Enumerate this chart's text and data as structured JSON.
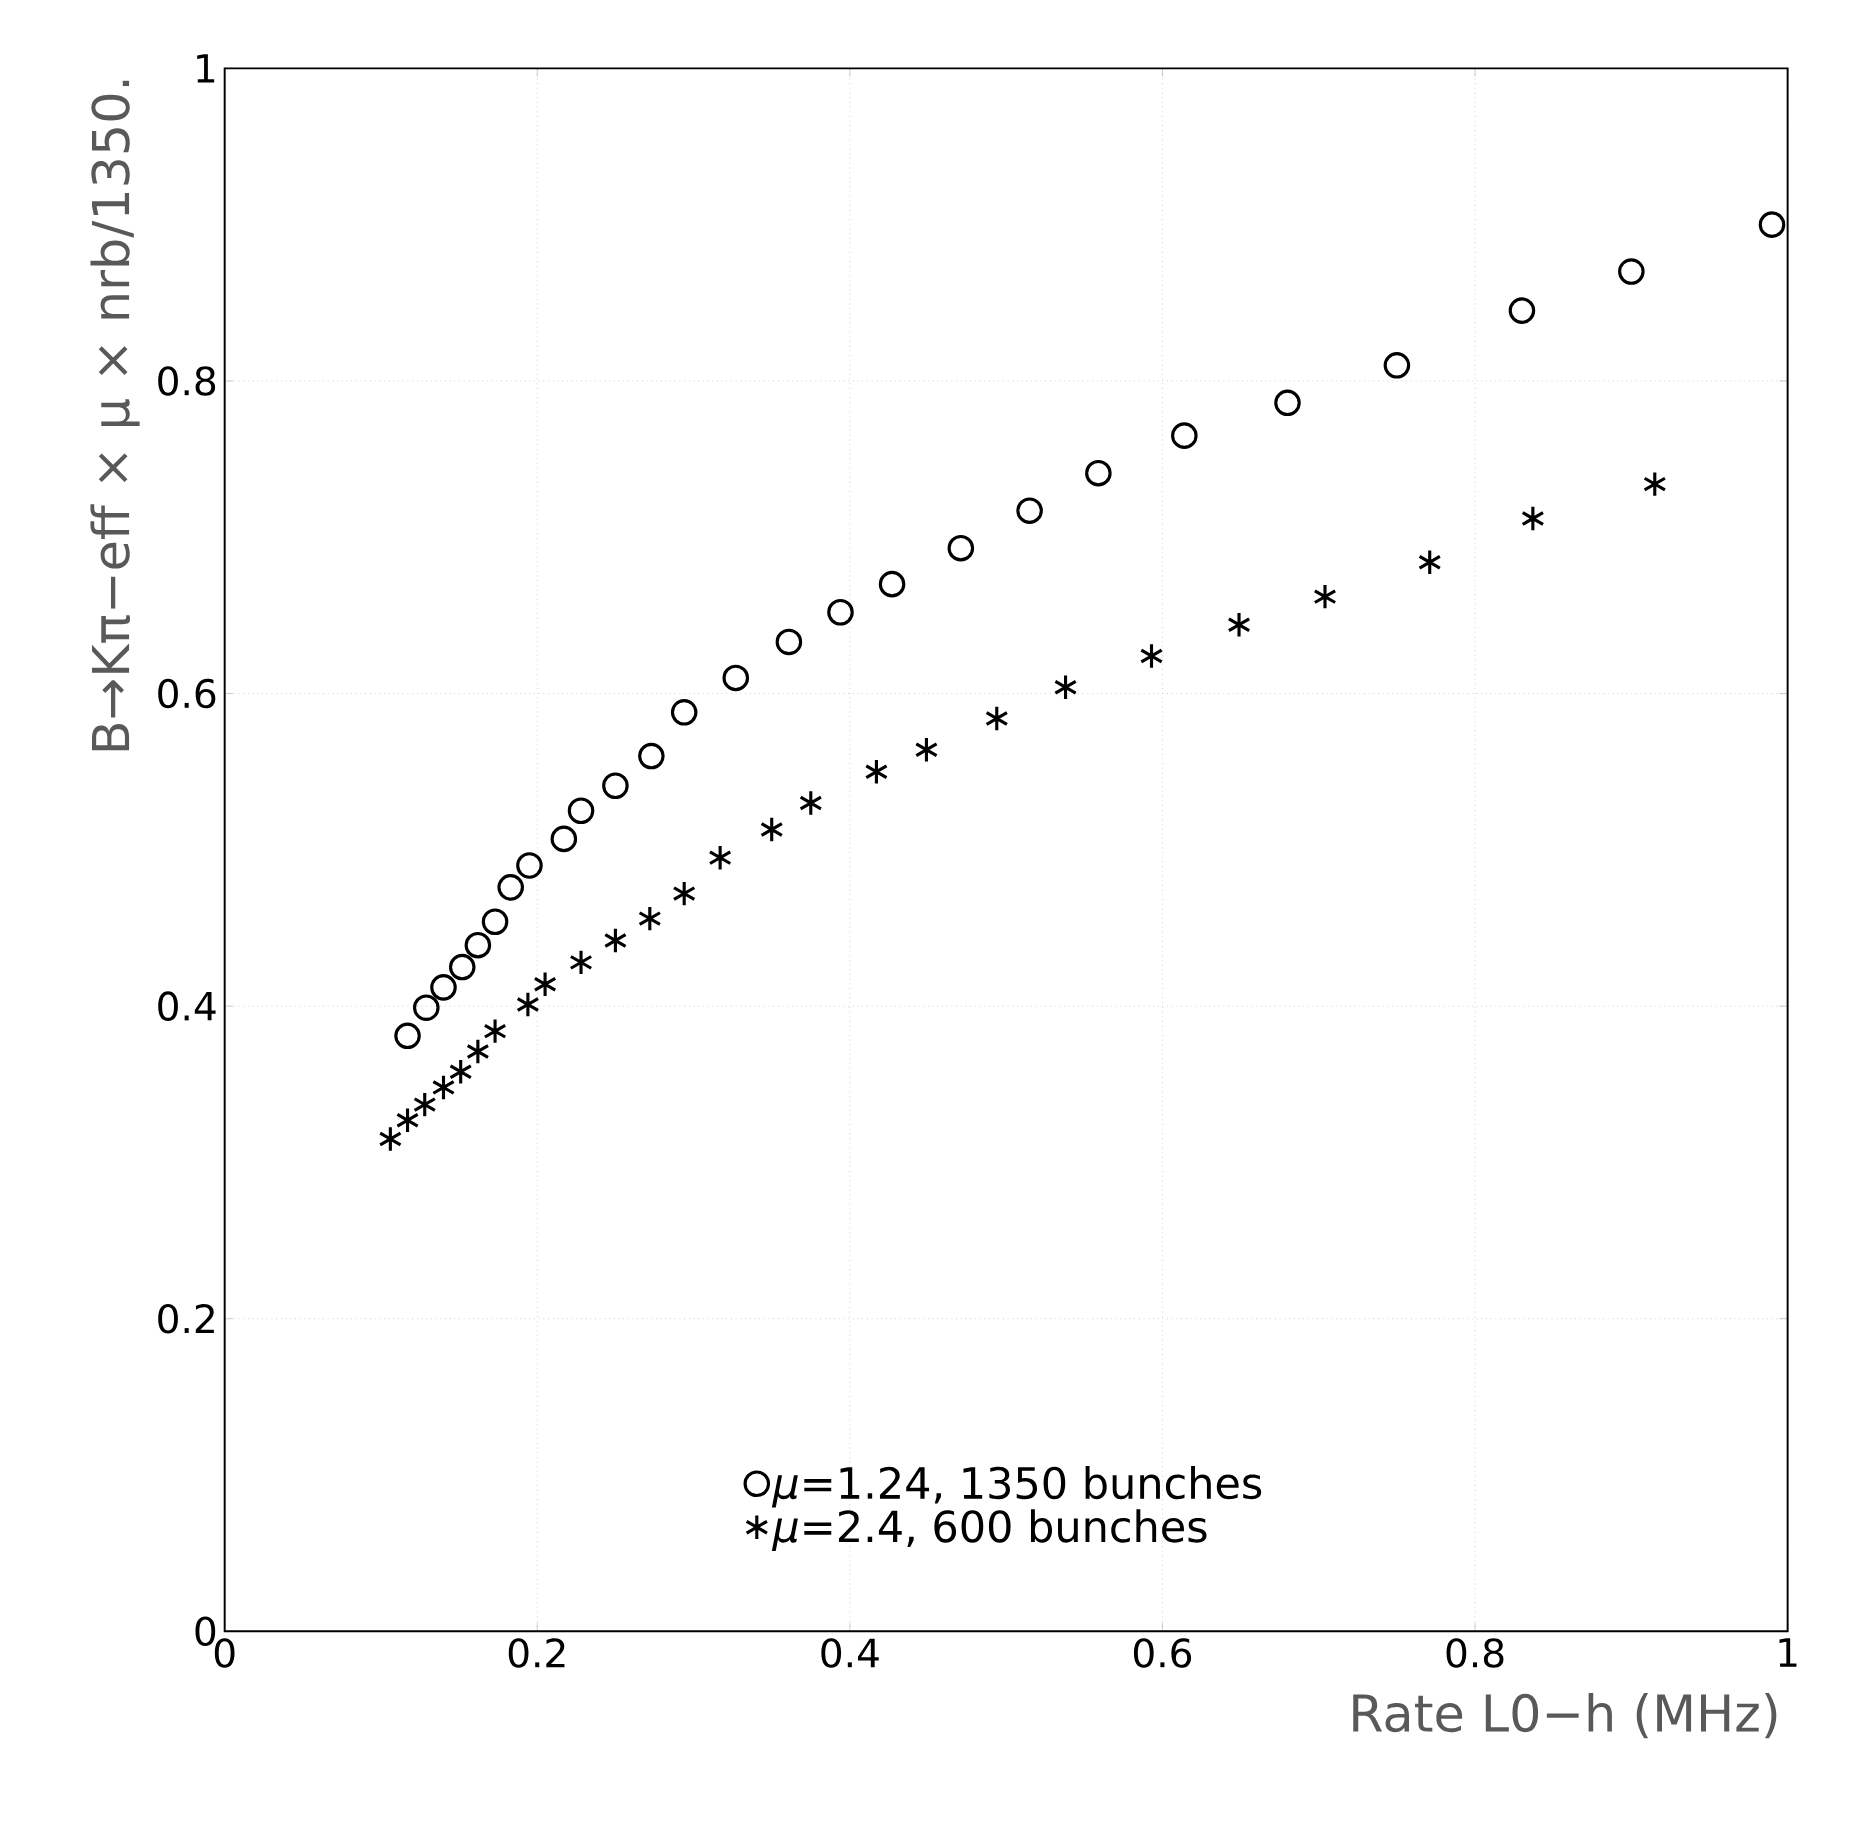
{
  "chart_data": {
    "type": "scatter",
    "xlabel": "Rate L0−h (MHz)",
    "ylabel": "B→Kπ−eff × μ × nrb/1350.",
    "xlim": [
      0,
      1
    ],
    "ylim": [
      0,
      1
    ],
    "xticks": [
      0,
      0.2,
      0.4,
      0.6,
      0.8,
      1
    ],
    "yticks": [
      0,
      0.2,
      0.4,
      0.6,
      0.8,
      1
    ],
    "grid": true,
    "legend": "bottom",
    "series": [
      {
        "name": "*μ*=1.24, 1350 bunches",
        "color": "#000000",
        "marker": "circle",
        "x": [
          0.117,
          0.129,
          0.14,
          0.152,
          0.162,
          0.173,
          0.183,
          0.195,
          0.217,
          0.228,
          0.25,
          0.273,
          0.294,
          0.327,
          0.361,
          0.394,
          0.427,
          0.471,
          0.515,
          0.559,
          0.614,
          0.68,
          0.75,
          0.83,
          0.9,
          0.99
        ],
        "values": [
          0.381,
          0.399,
          0.412,
          0.425,
          0.439,
          0.454,
          0.476,
          0.49,
          0.507,
          0.525,
          0.541,
          0.56,
          0.588,
          0.61,
          0.633,
          0.652,
          0.67,
          0.693,
          0.717,
          0.741,
          0.765,
          0.786,
          0.81,
          0.845,
          0.87,
          0.9
        ]
      },
      {
        "name": "*μ*=2.4, 600 bunches",
        "color": "#000000",
        "marker": "cross",
        "x": [
          0.106,
          0.117,
          0.128,
          0.14,
          0.151,
          0.162,
          0.173,
          0.194,
          0.205,
          0.228,
          0.25,
          0.272,
          0.294,
          0.317,
          0.35,
          0.375,
          0.417,
          0.449,
          0.494,
          0.538,
          0.593,
          0.649,
          0.704,
          0.771,
          0.837,
          0.915
        ],
        "values": [
          0.315,
          0.327,
          0.337,
          0.348,
          0.358,
          0.371,
          0.384,
          0.401,
          0.414,
          0.428,
          0.442,
          0.456,
          0.472,
          0.495,
          0.513,
          0.53,
          0.55,
          0.564,
          0.584,
          0.604,
          0.624,
          0.644,
          0.662,
          0.684,
          0.712,
          0.734
        ]
      }
    ]
  }
}
